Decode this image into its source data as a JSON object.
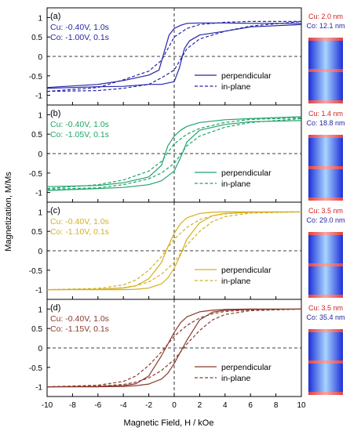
{
  "figure": {
    "xlabel": "Magnetic Field, H / kOe",
    "ylabel": "Magnetization, M/Ms",
    "xticks": [
      "-10",
      "-8",
      "-6",
      "-4",
      "-2",
      "0",
      "2",
      "4",
      "6",
      "8",
      "10"
    ],
    "yticks": [
      "1",
      "0.5",
      "0",
      "-0.5",
      "-1"
    ],
    "legend": {
      "solid": "perpendicular",
      "dashed": "in-plane"
    }
  },
  "chart_data": [
    {
      "type": "line",
      "panel": "(a)",
      "color": "#2525a8",
      "conditions": [
        "Cu: -0.40V, 1.0s",
        "Co: -1.00V, 0.1s"
      ],
      "layers": [
        "Cu: 2.0 nm",
        "Co: 12.1 nm"
      ],
      "layer_colors": [
        "#d32020",
        "#2424a0"
      ],
      "xlim": [
        -10,
        10
      ],
      "ylim": [
        -1.25,
        1.25
      ],
      "series": [
        {
          "name": "perpendicular",
          "upper": {
            "x": [
              -10,
              -6,
              -4,
              -2,
              -1.2,
              -0.8,
              -0.4,
              0,
              0.5,
              1,
              2,
              4,
              6,
              10
            ],
            "y": [
              -0.8,
              -0.72,
              -0.62,
              -0.48,
              -0.35,
              0.1,
              0.55,
              0.72,
              0.8,
              0.85,
              0.86,
              0.86,
              0.85,
              0.85
            ]
          },
          "lower": {
            "x": [
              -10,
              -6,
              -4,
              -2,
              -1,
              0,
              0.4,
              0.8,
              1.2,
              2,
              4,
              6,
              10
            ],
            "y": [
              -0.82,
              -0.78,
              -0.77,
              -0.72,
              -0.72,
              -0.65,
              -0.3,
              0.2,
              0.4,
              0.55,
              0.65,
              0.76,
              0.82
            ]
          }
        },
        {
          "name": "in-plane",
          "upper": {
            "x": [
              -10,
              -6,
              -4,
              -2,
              -1,
              0,
              1,
              2,
              4,
              6,
              10
            ],
            "y": [
              -0.9,
              -0.8,
              -0.6,
              -0.38,
              -0.1,
              0.5,
              0.72,
              0.82,
              0.88,
              0.9,
              0.9
            ]
          },
          "lower": {
            "x": [
              -10,
              -6,
              -4,
              -2,
              -1,
              0,
              1,
              2,
              4,
              6,
              10
            ],
            "y": [
              -0.9,
              -0.88,
              -0.82,
              -0.72,
              -0.55,
              -0.35,
              0.2,
              0.45,
              0.65,
              0.78,
              0.9
            ]
          }
        }
      ]
    },
    {
      "type": "line",
      "panel": "(b)",
      "color": "#1fa46a",
      "conditions": [
        "Cu: -0.40V, 1.0s",
        "Co: -1.05V, 0.1s"
      ],
      "layers": [
        "Cu: 1.4 nm",
        "Co: 18.8 nm"
      ],
      "layer_colors": [
        "#d32020",
        "#2424a0"
      ],
      "xlim": [
        -10,
        10
      ],
      "ylim": [
        -1.25,
        1.25
      ],
      "series": [
        {
          "name": "perpendicular",
          "upper": {
            "x": [
              -10,
              -6,
              -4,
              -2,
              -1,
              -0.5,
              0,
              0.5,
              1,
              2,
              4,
              6,
              10
            ],
            "y": [
              -0.85,
              -0.82,
              -0.75,
              -0.6,
              -0.3,
              0.2,
              0.45,
              0.6,
              0.7,
              0.8,
              0.87,
              0.9,
              0.95
            ]
          },
          "lower": {
            "x": [
              -10,
              -6,
              -4,
              -2,
              -1,
              0,
              0.5,
              1,
              2,
              4,
              6,
              10
            ],
            "y": [
              -0.95,
              -0.9,
              -0.87,
              -0.8,
              -0.7,
              -0.45,
              -0.1,
              0.3,
              0.6,
              0.75,
              0.82,
              0.85
            ]
          }
        },
        {
          "name": "in-plane",
          "upper": {
            "x": [
              -10,
              -6,
              -4,
              -2,
              -1,
              0,
              1,
              2,
              4,
              6,
              10
            ],
            "y": [
              -0.9,
              -0.8,
              -0.68,
              -0.45,
              -0.2,
              0.25,
              0.5,
              0.65,
              0.8,
              0.88,
              0.92
            ]
          },
          "lower": {
            "x": [
              -10,
              -6,
              -4,
              -2,
              -1,
              0,
              1,
              2,
              4,
              6,
              10
            ],
            "y": [
              -0.92,
              -0.88,
              -0.8,
              -0.65,
              -0.5,
              -0.25,
              0.2,
              0.45,
              0.68,
              0.8,
              0.9
            ]
          }
        }
      ]
    },
    {
      "type": "line",
      "panel": "(c)",
      "color": "#d4b020",
      "conditions": [
        "Cu: -0.40V, 1.0s",
        "Co: -1.10V, 0.1s"
      ],
      "layers": [
        "Cu: 3.5 nm",
        "Co: 29.0 nm"
      ],
      "layer_colors": [
        "#d32020",
        "#2424a0"
      ],
      "xlim": [
        -10,
        10
      ],
      "ylim": [
        -1.25,
        1.25
      ],
      "series": [
        {
          "name": "perpendicular",
          "upper": {
            "x": [
              -10,
              -6,
              -4,
              -3,
              -2,
              -1,
              -0.5,
              0,
              0.5,
              1,
              2,
              3,
              4,
              6,
              10
            ],
            "y": [
              -1,
              -0.99,
              -0.96,
              -0.9,
              -0.72,
              -0.3,
              0.1,
              0.45,
              0.7,
              0.85,
              0.96,
              0.99,
              1,
              1,
              1
            ]
          },
          "lower": {
            "x": [
              -10,
              -6,
              -4,
              -3,
              -2,
              -1,
              -0.5,
              0,
              0.5,
              1,
              2,
              3,
              4,
              6,
              10
            ],
            "y": [
              -1,
              -1,
              -1,
              -0.99,
              -0.96,
              -0.85,
              -0.7,
              -0.45,
              -0.1,
              0.3,
              0.72,
              0.9,
              0.96,
              0.99,
              1
            ]
          }
        },
        {
          "name": "in-plane",
          "upper": {
            "x": [
              -10,
              -6,
              -4,
              -3,
              -2,
              -1,
              0,
              1,
              2,
              3,
              4,
              6,
              10
            ],
            "y": [
              -1,
              -0.97,
              -0.88,
              -0.75,
              -0.5,
              -0.15,
              0.3,
              0.6,
              0.8,
              0.9,
              0.95,
              0.99,
              1
            ]
          },
          "lower": {
            "x": [
              -10,
              -6,
              -4,
              -3,
              -2,
              -1,
              0,
              1,
              2,
              3,
              4,
              6,
              10
            ],
            "y": [
              -1,
              -0.99,
              -0.95,
              -0.9,
              -0.8,
              -0.6,
              -0.3,
              0.15,
              0.5,
              0.75,
              0.88,
              0.97,
              1
            ]
          }
        }
      ]
    },
    {
      "type": "line",
      "panel": "(d)",
      "color": "#8a3a2c",
      "conditions": [
        "Cu: -0.40V, 1.0s",
        "Co: -1.15V, 0.1s"
      ],
      "layers": [
        "Cu: 3.5 nm",
        "Co: 35.4 nm"
      ],
      "layer_colors": [
        "#d32020",
        "#2424a0"
      ],
      "xlim": [
        -10,
        10
      ],
      "ylim": [
        -1.25,
        1.25
      ],
      "series": [
        {
          "name": "perpendicular",
          "upper": {
            "x": [
              -10,
              -6,
              -4,
              -3,
              -2,
              -1,
              0,
              0.5,
              1,
              2,
              3,
              4,
              6,
              10
            ],
            "y": [
              -1,
              -0.99,
              -0.97,
              -0.92,
              -0.72,
              -0.2,
              0.4,
              0.65,
              0.8,
              0.93,
              0.97,
              0.99,
              1,
              1
            ]
          },
          "lower": {
            "x": [
              -10,
              -6,
              -4,
              -3,
              -2,
              -1,
              -0.5,
              0,
              1,
              2,
              3,
              4,
              6,
              10
            ],
            "y": [
              -1,
              -1,
              -0.99,
              -0.97,
              -0.93,
              -0.8,
              -0.65,
              -0.4,
              0.2,
              0.72,
              0.92,
              0.97,
              0.99,
              1
            ]
          }
        },
        {
          "name": "in-plane",
          "upper": {
            "x": [
              -10,
              -6,
              -4,
              -3,
              -2,
              -1,
              0,
              1,
              2,
              3,
              4,
              6,
              10
            ],
            "y": [
              -1,
              -0.96,
              -0.86,
              -0.72,
              -0.45,
              -0.1,
              0.3,
              0.58,
              0.77,
              0.88,
              0.94,
              0.98,
              1
            ]
          },
          "lower": {
            "x": [
              -10,
              -6,
              -4,
              -3,
              -2,
              -1,
              0,
              1,
              2,
              3,
              4,
              6,
              10
            ],
            "y": [
              -1,
              -0.98,
              -0.94,
              -0.88,
              -0.77,
              -0.58,
              -0.3,
              0.1,
              0.45,
              0.72,
              0.86,
              0.96,
              1
            ]
          }
        }
      ]
    }
  ]
}
